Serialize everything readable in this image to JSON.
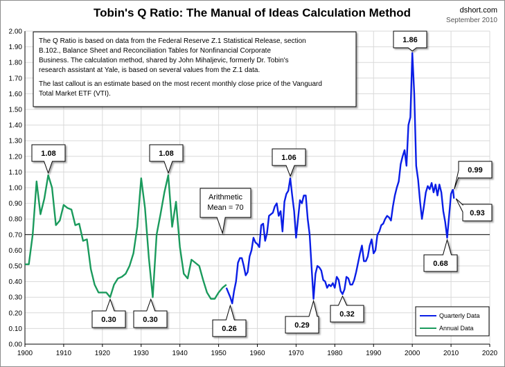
{
  "header": {
    "title": "Tobin's Q Ratio: The Manual of Ideas Calculation Method",
    "source": "dshort.com",
    "date": "September 2010"
  },
  "note": {
    "paragraph1": [
      "The Q Ratio is based on data from the Federal Reserve Z.1 Statistical Release, section",
      "B.102., Balance Sheet and Reconciliation Tables  for Nonfinancial Corporate",
      "Business. The calculation method, shared by John Mihaljevic, formerly Dr. Tobin's",
      "research assistant at Yale, is based on several values from the Z.1 data."
    ],
    "paragraph2": [
      "The last callout is an estimate based on the most recent monthly close price of the Vanguard",
      "Total Market ETF (VTI)."
    ]
  },
  "colors": {
    "annual": "#1a9a5c",
    "quarterly": "#0a1ee6",
    "mean_line": "#000000",
    "mean_label": "#c00000",
    "latest_label": "#1f3dd6"
  },
  "chart_data": {
    "type": "line",
    "title": "Tobin's Q Ratio: The Manual of Ideas Calculation Method",
    "xlim": [
      1900,
      2020
    ],
    "ylim": [
      0.0,
      2.0
    ],
    "x_ticks": [
      1900,
      1910,
      1920,
      1930,
      1940,
      1950,
      1960,
      1970,
      1980,
      1990,
      2000,
      2010,
      2020
    ],
    "y_ticks": [
      0.0,
      0.1,
      0.2,
      0.3,
      0.4,
      0.5,
      0.6,
      0.7,
      0.8,
      0.9,
      1.0,
      1.1,
      1.2,
      1.3,
      1.4,
      1.5,
      1.6,
      1.7,
      1.8,
      1.9,
      2.0
    ],
    "y_tick_labels": [
      "0.00",
      "0.10",
      "0.20",
      "0.30",
      "0.40",
      "0.50",
      "0.60",
      "0.70",
      "0.80",
      "0.90",
      "1.00",
      "1.10",
      "1.20",
      "1.30",
      "1.40",
      "1.50",
      "1.60",
      "1.70",
      "1.80",
      "1.90",
      "2.00"
    ],
    "grid": true,
    "legend": {
      "position": "bottom-right",
      "entries": [
        {
          "name": "Quarterly Data",
          "color_key": "quarterly"
        },
        {
          "name": "Annual Data",
          "color_key": "annual"
        }
      ]
    },
    "mean": {
      "value": 0.7,
      "label": [
        "Arithmetic",
        "Mean = 70"
      ]
    },
    "series": [
      {
        "name": "Annual Data",
        "color_key": "annual",
        "x": [
          1900,
          1901,
          1902,
          1903,
          1904,
          1905,
          1906,
          1907,
          1908,
          1909,
          1910,
          1911,
          1912,
          1913,
          1914,
          1915,
          1916,
          1917,
          1918,
          1919,
          1920,
          1921,
          1922,
          1923,
          1924,
          1925,
          1926,
          1927,
          1928,
          1929,
          1930,
          1931,
          1932,
          1933,
          1934,
          1935,
          1936,
          1937,
          1938,
          1939,
          1940,
          1941,
          1942,
          1943,
          1944,
          1945,
          1946,
          1947,
          1948,
          1949,
          1950,
          1951,
          1952
        ],
        "y": [
          0.51,
          0.51,
          0.7,
          1.04,
          0.83,
          0.93,
          1.08,
          1.0,
          0.76,
          0.79,
          0.89,
          0.87,
          0.86,
          0.76,
          0.77,
          0.66,
          0.67,
          0.48,
          0.38,
          0.33,
          0.33,
          0.33,
          0.3,
          0.38,
          0.42,
          0.43,
          0.45,
          0.5,
          0.58,
          0.75,
          1.06,
          0.87,
          0.55,
          0.3,
          0.7,
          0.83,
          0.97,
          1.08,
          0.75,
          0.91,
          0.62,
          0.45,
          0.42,
          0.54,
          0.52,
          0.5,
          0.41,
          0.33,
          0.29,
          0.29,
          0.33,
          0.36,
          0.38
        ]
      },
      {
        "name": "Quarterly Data",
        "color_key": "quarterly",
        "x": [
          1952.0,
          1952.5,
          1953.0,
          1953.5,
          1954.0,
          1954.5,
          1955.0,
          1955.5,
          1956.0,
          1956.5,
          1957.0,
          1957.5,
          1958.0,
          1958.5,
          1959.0,
          1959.5,
          1960.0,
          1960.5,
          1961.0,
          1961.5,
          1962.0,
          1962.5,
          1963.0,
          1963.5,
          1964.0,
          1964.5,
          1965.0,
          1965.5,
          1966.0,
          1966.5,
          1967.0,
          1967.5,
          1968.0,
          1968.5,
          1969.0,
          1969.5,
          1970.0,
          1970.5,
          1971.0,
          1971.5,
          1972.0,
          1972.5,
          1973.0,
          1973.5,
          1974.0,
          1974.5,
          1975.0,
          1975.5,
          1976.0,
          1976.5,
          1977.0,
          1977.5,
          1978.0,
          1978.5,
          1979.0,
          1979.5,
          1980.0,
          1980.5,
          1981.0,
          1981.5,
          1982.0,
          1982.5,
          1983.0,
          1983.5,
          1984.0,
          1984.5,
          1985.0,
          1985.5,
          1986.0,
          1986.5,
          1987.0,
          1987.5,
          1988.0,
          1988.5,
          1989.0,
          1989.5,
          1990.0,
          1990.5,
          1991.0,
          1991.5,
          1992.0,
          1992.5,
          1993.0,
          1993.5,
          1994.0,
          1994.5,
          1995.0,
          1995.5,
          1996.0,
          1996.5,
          1997.0,
          1997.5,
          1998.0,
          1998.5,
          1999.0,
          1999.5,
          2000.0,
          2000.5,
          2001.0,
          2001.5,
          2002.0,
          2002.5,
          2003.0,
          2003.5,
          2004.0,
          2004.5,
          2005.0,
          2005.5,
          2006.0,
          2006.5,
          2007.0,
          2007.5,
          2008.0,
          2008.5,
          2009.0,
          2009.5,
          2010.0,
          2010.5
        ],
        "y": [
          0.36,
          0.33,
          0.3,
          0.26,
          0.34,
          0.4,
          0.52,
          0.55,
          0.55,
          0.5,
          0.44,
          0.46,
          0.56,
          0.6,
          0.68,
          0.65,
          0.64,
          0.62,
          0.76,
          0.77,
          0.66,
          0.71,
          0.82,
          0.83,
          0.84,
          0.88,
          0.9,
          0.82,
          0.85,
          0.72,
          0.91,
          0.96,
          0.98,
          1.06,
          0.95,
          0.85,
          0.68,
          0.8,
          0.92,
          0.9,
          0.95,
          0.95,
          0.8,
          0.7,
          0.49,
          0.29,
          0.45,
          0.5,
          0.49,
          0.47,
          0.41,
          0.4,
          0.36,
          0.38,
          0.37,
          0.39,
          0.36,
          0.43,
          0.41,
          0.34,
          0.32,
          0.35,
          0.43,
          0.42,
          0.38,
          0.38,
          0.41,
          0.46,
          0.52,
          0.58,
          0.63,
          0.53,
          0.53,
          0.56,
          0.63,
          0.67,
          0.58,
          0.6,
          0.7,
          0.72,
          0.76,
          0.77,
          0.8,
          0.82,
          0.81,
          0.79,
          0.88,
          0.95,
          1.0,
          1.04,
          1.15,
          1.2,
          1.24,
          1.14,
          1.4,
          1.45,
          1.86,
          1.6,
          1.14,
          1.05,
          0.91,
          0.8,
          0.88,
          0.97,
          1.01,
          0.99,
          1.03,
          0.97,
          1.02,
          0.95,
          1.02,
          0.97,
          0.85,
          0.78,
          0.68,
          0.82,
          0.96,
          0.99
        ]
      },
      {
        "name": "",
        "color_key": "quarterly",
        "x": [
          2010.5,
          2010.75
        ],
        "y": [
          0.99,
          0.93
        ]
      }
    ],
    "annotations": [
      {
        "id": "ann-1906",
        "text": "1.08",
        "x": 1906,
        "y": 1.08
      },
      {
        "id": "ann-1922",
        "text": "0.30",
        "x": 1922,
        "y": 0.3
      },
      {
        "id": "ann-1932",
        "text": "0.30",
        "x": 1932.5,
        "y": 0.3
      },
      {
        "id": "ann-1937",
        "text": "1.08",
        "x": 1937,
        "y": 1.08
      },
      {
        "id": "ann-1953",
        "text": "0.26",
        "x": 1953,
        "y": 0.26
      },
      {
        "id": "ann-1968",
        "text": "1.06",
        "x": 1968.5,
        "y": 1.06
      },
      {
        "id": "ann-1974",
        "text": "0.29",
        "x": 1974.5,
        "y": 0.29
      },
      {
        "id": "ann-1982",
        "text": "0.32",
        "x": 1982,
        "y": 0.32
      },
      {
        "id": "ann-2000",
        "text": "1.86",
        "x": 2000,
        "y": 1.86
      },
      {
        "id": "ann-2009",
        "text": "0.68",
        "x": 2009,
        "y": 0.68
      },
      {
        "id": "ann-2010a",
        "text": "0.99",
        "x": 2010.3,
        "y": 0.99
      },
      {
        "id": "ann-2010b",
        "text": "0.93",
        "x": 2010.75,
        "y": 0.93
      }
    ]
  }
}
